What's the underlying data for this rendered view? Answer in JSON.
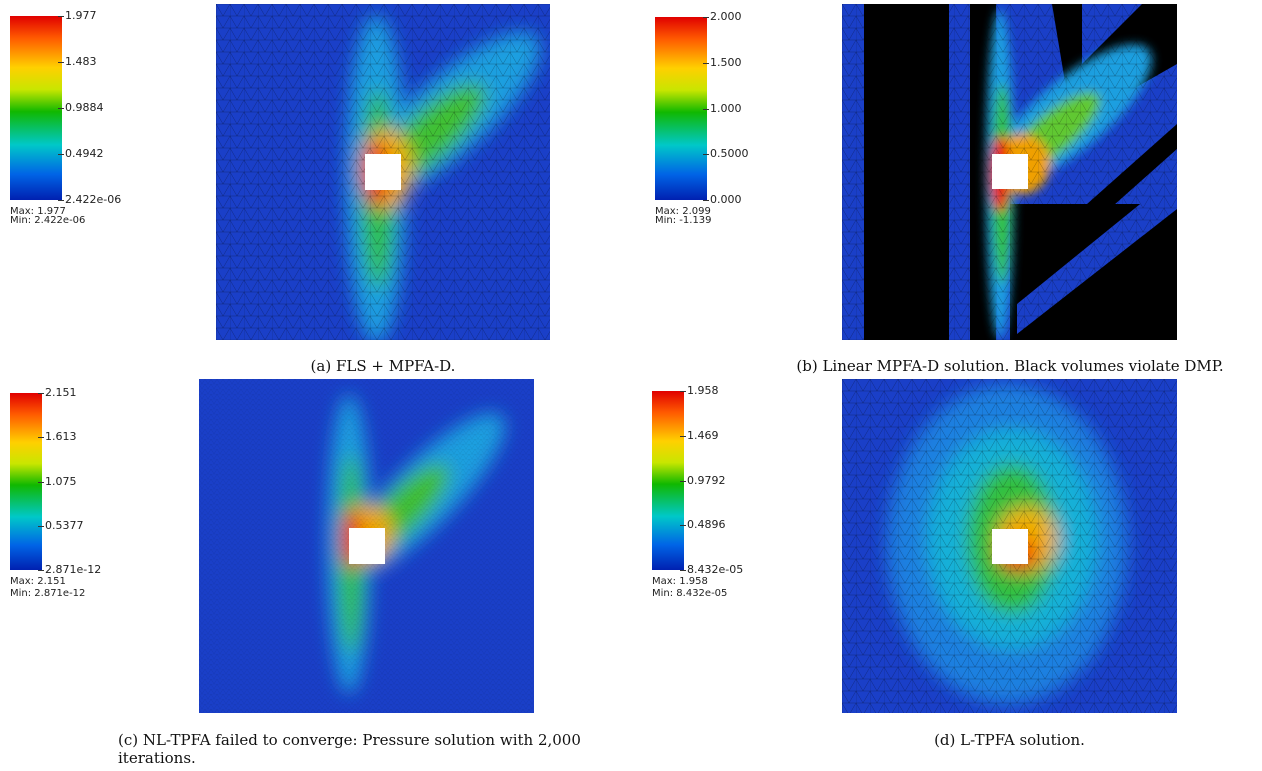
{
  "panels": [
    {
      "colorbar": {
        "labels": [
          "1.977",
          "1.483",
          "0.9884",
          "0.4942",
          "2.422e-06"
        ]
      },
      "max": "Max: 1.977",
      "min": "Min: 2.422e-06",
      "caption": "(a) FLS + MPFA-D."
    },
    {
      "colorbar": {
        "labels": [
          "2.000",
          "1.500",
          "1.000",
          "0.5000",
          "0.000"
        ]
      },
      "max": "Max: 2.099",
      "min": "Min: -1.139",
      "caption": "(b) Linear MPFA-D solution. Black volumes violate DMP."
    },
    {
      "colorbar": {
        "labels": [
          "2.151",
          "1.613",
          "1.075",
          "0.5377",
          "2.871e-12"
        ]
      },
      "max": "Max: 2.151",
      "min": "Min: 2.871e-12",
      "caption": "(c) NL-TPFA failed to converge: Pressure solution with 2,000 iterations."
    },
    {
      "colorbar": {
        "labels": [
          "1.958",
          "1.469",
          "0.9792",
          "0.4896",
          "8.432e-05"
        ]
      },
      "max": "Max: 1.958",
      "min": "Min: 8.432e-05",
      "caption": "(d) L-TPFA solution."
    }
  ]
}
